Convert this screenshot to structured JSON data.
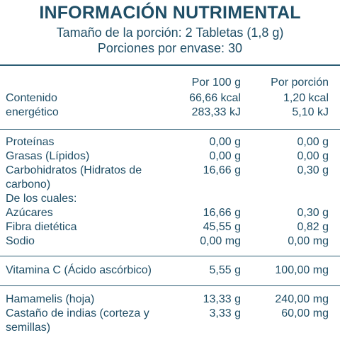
{
  "header": {
    "title": "INFORMACIÓN NUTRIMENTAL",
    "serving_size": "Tamaño de la porción: 2 Tabletas (1,8 g)",
    "servings_per_container": "Porciones por envase: 30"
  },
  "columns": {
    "per_100g": "Por 100 g",
    "per_serving": "Por porción"
  },
  "energy": {
    "label_line1": "Contenido",
    "label_line2": "energético",
    "kcal_100g": "66,66 kcal",
    "kcal_serving": "1,20 kcal",
    "kj_100g": "283,33 kJ",
    "kj_serving": "5,10 kJ"
  },
  "nutrients": {
    "proteinas": {
      "label": "Proteínas",
      "v100": "0,00 g",
      "vserv": "0,00 g"
    },
    "grasas": {
      "label": "Grasas (Lípidos)",
      "v100": "0,00 g",
      "vserv": "0,00 g"
    },
    "carbohidratos": {
      "label_line1": "Carbohidratos (Hidratos de",
      "label_line2": "carbono)",
      "v100": "16,66 g",
      "vserv": "0,30 g"
    },
    "de_los_cuales": {
      "label": "De los cuales:"
    },
    "azucares": {
      "label": "Azúcares",
      "v100": "16,66 g",
      "vserv": "0,30 g"
    },
    "fibra": {
      "label": "Fibra dietética",
      "v100": "45,55 g",
      "vserv": "0,82 g"
    },
    "sodio": {
      "label": "Sodio",
      "v100": "0,00 mg",
      "vserv": "0,00 mg"
    }
  },
  "vitamins": {
    "vitamina_c": {
      "label": "Vitamina C (Ácido ascórbico)",
      "v100": "5,55 g",
      "vserv": "100,00 mg"
    }
  },
  "extracts": {
    "hamamelis": {
      "label": "Hamamelis (hoja)",
      "v100": "13,33 g",
      "vserv": "240,00 mg"
    },
    "castano": {
      "label_line1": "Castaño de indias (corteza y",
      "label_line2": "semillas)",
      "v100": "3,33 g",
      "vserv": "60,00 mg"
    }
  }
}
